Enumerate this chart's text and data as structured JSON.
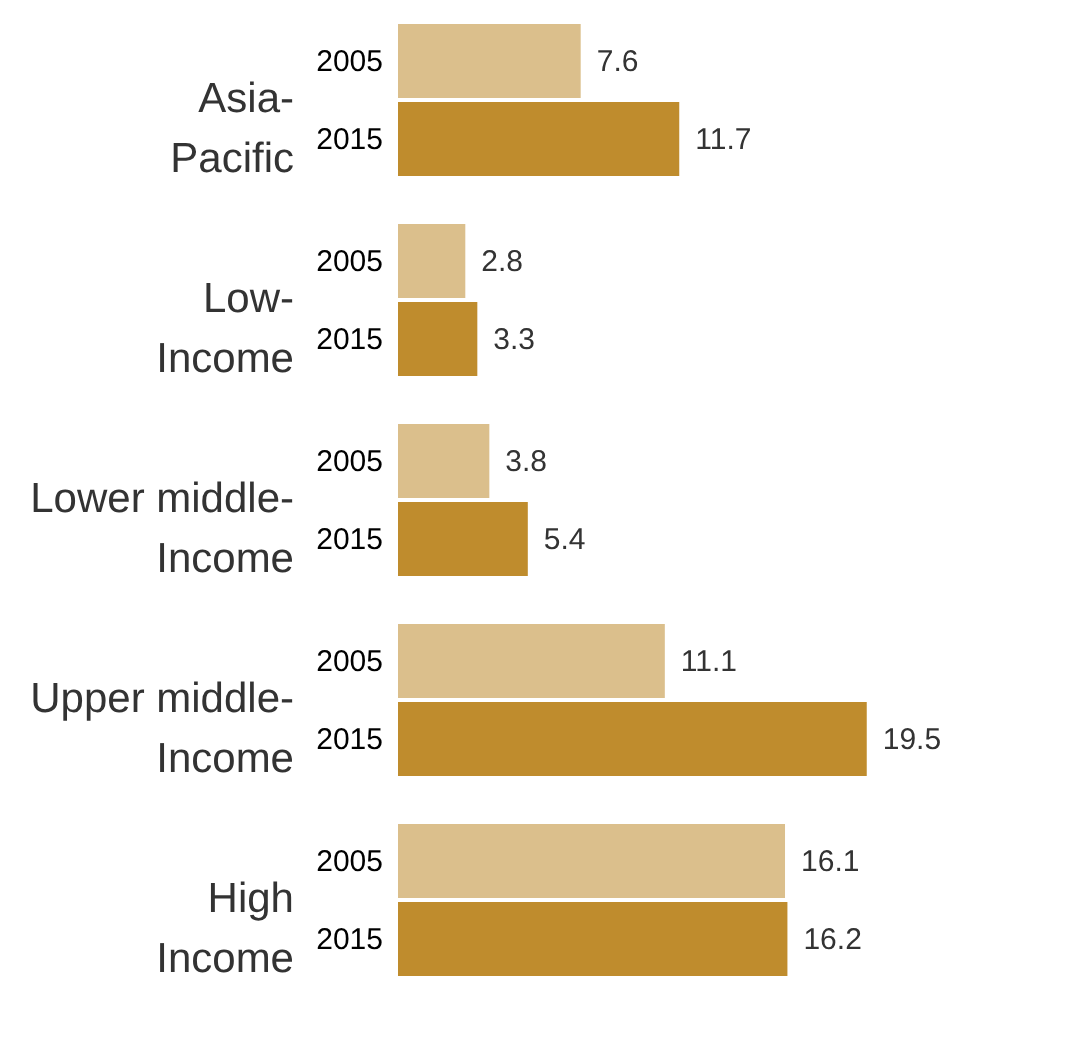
{
  "chart_data": {
    "type": "bar",
    "orientation": "horizontal",
    "categories": [
      "Asia-Pacific",
      "Low-Income",
      "Lower middle-Income",
      "Upper middle-Income",
      "High Income"
    ],
    "series": [
      {
        "name": "2005",
        "color": "#dbbf8c",
        "values": [
          7.6,
          2.8,
          3.8,
          11.1,
          16.1
        ]
      },
      {
        "name": "2015",
        "color": "#bf8c2d",
        "values": [
          11.7,
          3.3,
          5.4,
          19.5,
          16.2
        ]
      }
    ],
    "data_labels": true,
    "grid": false,
    "tick_labels": "y"
  }
}
